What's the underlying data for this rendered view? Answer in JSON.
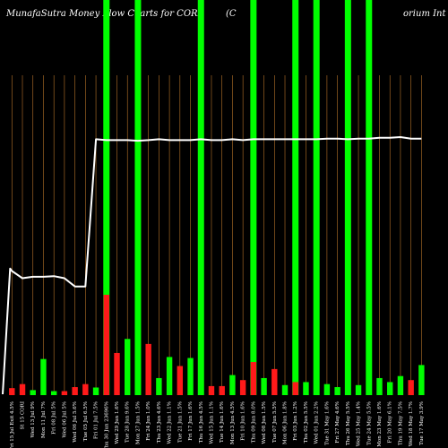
{
  "chart_data": {
    "type": "bar",
    "title_left": "MunafaSutra  Money Flow  Charts for CORI",
    "title_mid": "(C",
    "title_right": "orium Int",
    "ylim": [
      0,
      100
    ],
    "line_ylim": [
      0,
      100
    ],
    "colors": {
      "background": "#000000",
      "grid": "#b8742a",
      "up": "#00ff00",
      "down": "#ff1a1a",
      "line": "#ffffff"
    },
    "categories": [
      "Fri 15 Jul Exit 4.5%",
      "St 15 CORI",
      "Wed 13 Jul 9%",
      "Mon 11 Jul 7%",
      "Fri 08 Jul 5%",
      "Wed 06 Jul 5%",
      "Wed 06 Jul 5.6%",
      "Tue 05 Jul 6.5%",
      "Fri 01 Jul 7.5%",
      "Thu 30 Jun 23696%",
      "Wed 29 Jun 1.6%",
      "Tue 28 Jun 9.6%",
      "Mon 27 Jun 1.5%",
      "Fri 24 Jun 1.0%",
      "Thu 23 Jun 4.6%",
      "Wed 22 Jun 1.1%",
      "Tue 21 Jun 1.5%",
      "Fri 17 Jun 1.6%",
      "Thu 16 Jun 4.5%",
      "Wed 15 Jun 1.1%",
      "Tue 14 Jun 1.6%",
      "Mon 13 Jun 4.5%",
      "Fri 10 Jun 1.6%",
      "Thu 09 Jun 8.0%",
      "Wed 08 Jun 1.5%",
      "Tue 07 Jun 5.5%",
      "Mon 06 Jun 1.8%",
      "Fri 03 Jun 1.2%",
      "Thu 02 Jun 5.5%",
      "Wed 01 Jun 2.2%",
      "Tue 31 May 1.6%",
      "Fri 27 May 4.6%",
      "Thu 26 May 5.5%",
      "Wed 25 May 1.4%",
      "Tue 24 May 5.5%",
      "Mon 23 May 1.6%",
      "Fri 20 May 6.1%",
      "Thu 19 May 7.5%",
      "Wed 18 May 1.7%",
      "Tue 17 May 3.9%"
    ],
    "bars": [
      {
        "v": 3.5,
        "c": "down"
      },
      {
        "v": 5.5,
        "c": "down"
      },
      {
        "v": 2.5,
        "c": "up"
      },
      {
        "v": 18,
        "c": "up"
      },
      {
        "v": 2,
        "c": "up"
      },
      {
        "v": 2,
        "c": "down"
      },
      {
        "v": 4,
        "c": "down"
      },
      {
        "v": 5.5,
        "c": "down"
      },
      {
        "v": 3.8,
        "c": "up"
      },
      {
        "v": 50,
        "c": "down"
      },
      {
        "v": 21,
        "c": "down"
      },
      {
        "v": 28,
        "c": "up"
      },
      {
        "v": 13.5,
        "c": "up"
      },
      {
        "v": 25.5,
        "c": "down"
      },
      {
        "v": 8.5,
        "c": "up"
      },
      {
        "v": 19,
        "c": "up"
      },
      {
        "v": 14.5,
        "c": "down"
      },
      {
        "v": 18.5,
        "c": "up"
      },
      {
        "v": 2.5,
        "c": "up"
      },
      {
        "v": 4.5,
        "c": "down"
      },
      {
        "v": 4.5,
        "c": "down"
      },
      {
        "v": 10,
        "c": "up"
      },
      {
        "v": 7.5,
        "c": "down"
      },
      {
        "v": 16.5,
        "c": "down"
      },
      {
        "v": 8.5,
        "c": "up"
      },
      {
        "v": 13,
        "c": "down"
      },
      {
        "v": 5,
        "c": "up"
      },
      {
        "v": 6.5,
        "c": "down"
      },
      {
        "v": 6.5,
        "c": "up"
      },
      {
        "v": 12,
        "c": "up"
      },
      {
        "v": 5.5,
        "c": "up"
      },
      {
        "v": 4,
        "c": "up"
      },
      {
        "v": 12,
        "c": "up"
      },
      {
        "v": 5,
        "c": "up"
      },
      {
        "v": 5,
        "c": "up"
      },
      {
        "v": 8.5,
        "c": "up"
      },
      {
        "v": 6.5,
        "c": "up"
      },
      {
        "v": 9.5,
        "c": "up"
      },
      {
        "v": 7.5,
        "c": "down"
      },
      {
        "v": 15,
        "c": "up"
      }
    ],
    "highlight_indices": [
      9,
      12,
      18,
      23,
      27,
      29,
      32,
      34
    ],
    "line_values": [
      40.7,
      38.3,
      38.8,
      38.8,
      39.0,
      38.3,
      35.6,
      35.6,
      84.2,
      83.9,
      83.9,
      83.9,
      83.7,
      83.9,
      84.2,
      83.9,
      83.9,
      83.9,
      84.2,
      83.9,
      83.9,
      84.2,
      83.9,
      84.2,
      84.2,
      84.2,
      84.2,
      84.2,
      84.2,
      84.2,
      84.4,
      84.4,
      84.2,
      84.4,
      84.4,
      84.7,
      84.7,
      84.9,
      84.4,
      84.4
    ],
    "line_start": 41.5,
    "legend_position": "none",
    "grid": true
  }
}
